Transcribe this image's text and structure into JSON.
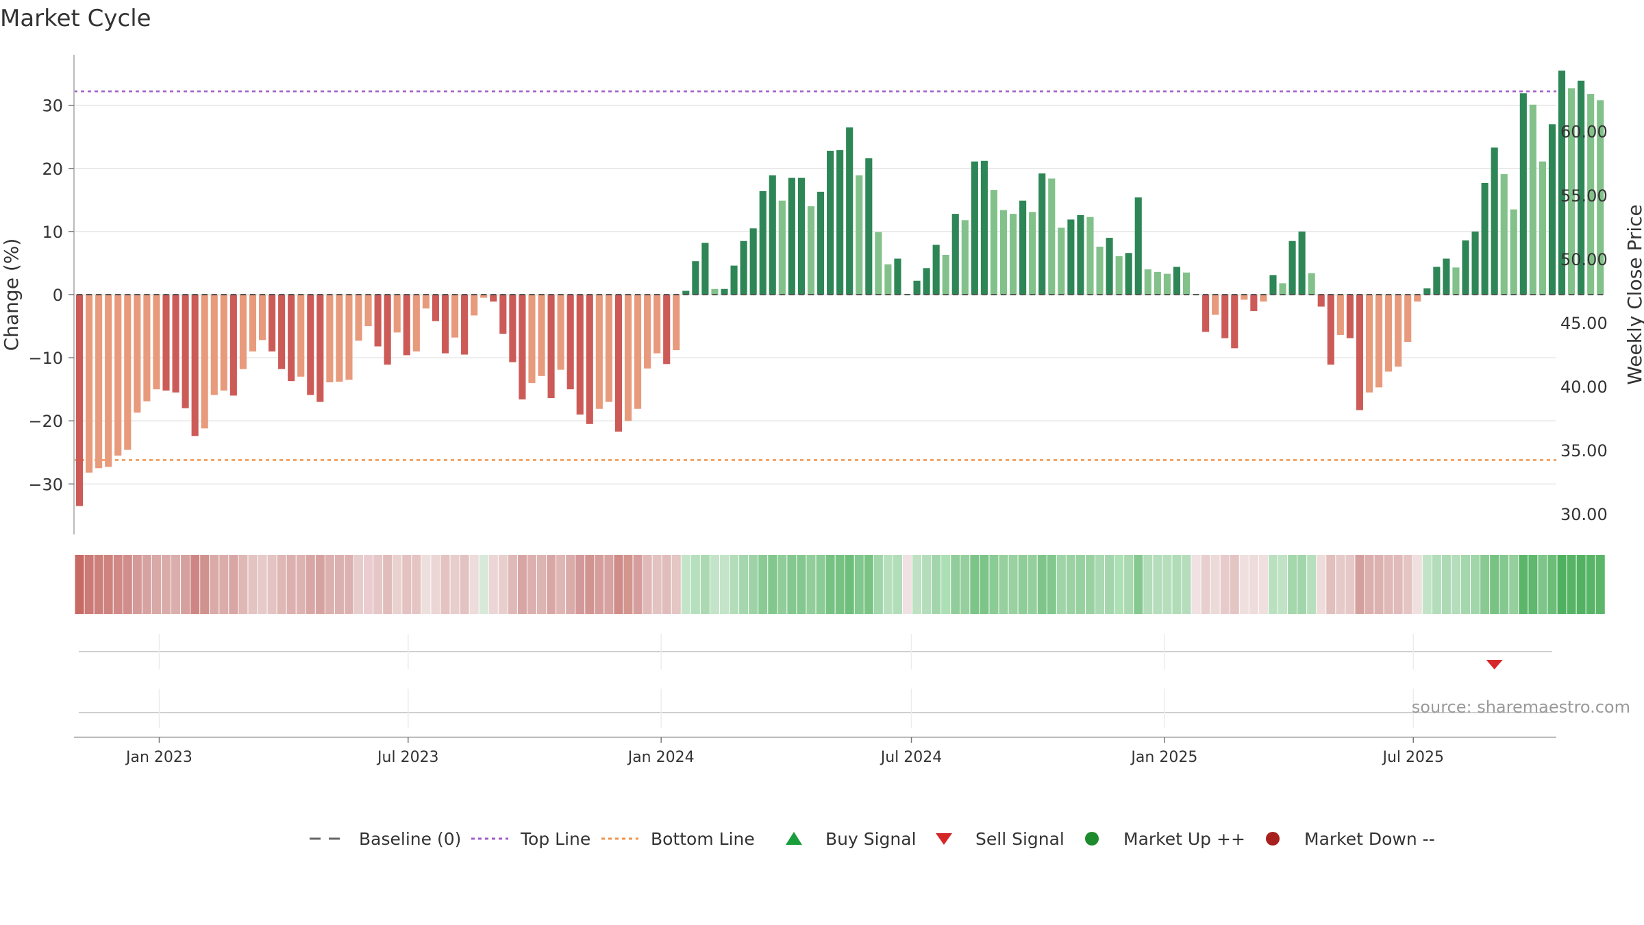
{
  "chart_data": {
    "type": "bar",
    "title": "Market Cycle",
    "ylabel": "Change (%)",
    "y2label": "Weekly Close Price",
    "ylim": [
      -38,
      38
    ],
    "y2lim": [
      28.4,
      66.0
    ],
    "yticks": [
      30,
      20,
      10,
      0,
      -10,
      -20,
      -30
    ],
    "ytick_labels": [
      "30",
      "20",
      "10",
      "0",
      "−10",
      "−20",
      "−30"
    ],
    "y2ticks": [
      60,
      55,
      50,
      45,
      40,
      35,
      30
    ],
    "y2tick_labels": [
      "60.00",
      "55.00",
      "50.00",
      "45.00",
      "40.00",
      "35.00",
      "30.00"
    ],
    "top_line": 32.2,
    "bottom_line": -26.2,
    "x_range": [
      "2022-10-31",
      "2025-10-13"
    ],
    "x_ticks": [
      "2023-01-01",
      "2023-07-01",
      "2024-01-01",
      "2024-07-01",
      "2025-01-01",
      "2025-07-01"
    ],
    "x_tick_labels": [
      "Jan 2023",
      "Jul 2023",
      "Jan 2024",
      "Jul 2024",
      "Jan 2025",
      "Jul 2025"
    ],
    "start_date": "2022-11-04",
    "values": [
      -33.5,
      -28.2,
      -27.5,
      -27.3,
      -25.5,
      -24.6,
      -18.7,
      -16.9,
      -15.0,
      -15.2,
      -15.5,
      -18.0,
      -22.4,
      -21.2,
      -15.9,
      -15.2,
      -16.0,
      -11.8,
      -9.0,
      -7.2,
      -9.0,
      -11.8,
      -13.7,
      -13.0,
      -15.9,
      -17.0,
      -13.9,
      -13.8,
      -13.5,
      -7.3,
      -5.0,
      -8.2,
      -11.1,
      -6.0,
      -9.6,
      -9.0,
      -2.2,
      -4.2,
      -9.3,
      -6.8,
      -9.5,
      -3.3,
      -0.5,
      -1.1,
      -6.2,
      -10.7,
      -16.6,
      -14.0,
      -12.9,
      -16.4,
      -11.9,
      -15.0,
      -19.0,
      -20.5,
      -18.1,
      -17.0,
      -21.7,
      -20.0,
      -18.1,
      -11.7,
      -9.3,
      -11.0,
      -8.8,
      0.6,
      5.3,
      8.2,
      0.9,
      0.9,
      4.6,
      8.5,
      10.5,
      16.4,
      18.9,
      14.9,
      18.5,
      18.5,
      14.0,
      16.3,
      22.8,
      22.9,
      26.5,
      18.9,
      21.6,
      9.9,
      4.8,
      5.7,
      0.1,
      2.2,
      4.2,
      7.9,
      6.3,
      12.8,
      11.8,
      21.1,
      21.2,
      16.6,
      13.4,
      12.8,
      14.9,
      13.1,
      19.2,
      18.4,
      10.6,
      11.9,
      12.6,
      12.3,
      7.6,
      9.0,
      6.1,
      6.6,
      15.4,
      4.0,
      3.6,
      3.3,
      4.4,
      3.5,
      0.1,
      -5.9,
      -3.2,
      -6.9,
      -8.5,
      -0.8,
      -2.6,
      -1.1,
      3.1,
      1.8,
      8.5,
      10.0,
      3.4,
      -1.9,
      -11.1,
      -6.4,
      -6.9,
      -18.3,
      -15.5,
      -14.7,
      -12.2,
      -11.4,
      -7.5,
      -1.1,
      1.0,
      4.4,
      5.7,
      4.3,
      8.6,
      10.0,
      17.7,
      23.3,
      19.1,
      13.5,
      31.9,
      30.1,
      21.1,
      27.0,
      35.5,
      32.7,
      33.9,
      31.8,
      30.8
    ],
    "heat_strip_colors": [
      "#c86a64",
      "#cb7a77",
      "#cc807c",
      "#ce837e",
      "#d08986",
      "#d18d8b",
      "#d49a98",
      "#d6a3a1",
      "#d8a9a7",
      "#d9aba9",
      "#daaeac",
      "#d5a19e",
      "#cd8683",
      "#d0928e",
      "#d9aaa8",
      "#daadab",
      "#d8a6a4",
      "#dfb8b6",
      "#e3c4c2",
      "#e6cac9",
      "#e3c4c2",
      "#dfb8b6",
      "#dbb0ae",
      "#ddb3b1",
      "#d8a7a5",
      "#d6a2a0",
      "#dbb0ae",
      "#dbb1af",
      "#dcb2b0",
      "#e6cdcc",
      "#eaccd0",
      "#e4c7c6",
      "#e0bcba",
      "#e9d1d0",
      "#e3c2c1",
      "#e4c5c4",
      "#eddfde",
      "#ebd6d5",
      "#e3c4c3",
      "#e7cdcc",
      "#e3c3c2",
      "#eddcdb",
      "#d8e9da",
      "#ebd6d5",
      "#e8cfce",
      "#dfb9b7",
      "#d7a5a3",
      "#dbb0ae",
      "#dcb4b2",
      "#d8a7a5",
      "#deb7b5",
      "#d9aba9",
      "#d3989a",
      "#d19490",
      "#d59e9c",
      "#d6a3a1",
      "#cf8c88",
      "#d2968f",
      "#d59e9c",
      "#dfbab8",
      "#e3c3c2",
      "#e0bdbb",
      "#e4c6c4",
      "#c4e4c9",
      "#b6dfbd",
      "#aad9b2",
      "#c3e4c8",
      "#c3e4c8",
      "#b3ddba",
      "#a5d7ae",
      "#9dd3a6",
      "#8acb95",
      "#82c78d",
      "#90cd9a",
      "#84c88f",
      "#84c88f",
      "#92ce9b",
      "#8bcb95",
      "#77c283",
      "#77c283",
      "#6dbe7a",
      "#82c78d",
      "#79c385",
      "#a1d5aa",
      "#b7dfbd",
      "#b2ddb9",
      "#f0e1e2",
      "#bde1c2",
      "#b4ddbb",
      "#a2d5ab",
      "#ace0b4",
      "#91cd9a",
      "#95cf9e",
      "#7cc487",
      "#7cc487",
      "#8bcb95",
      "#97d09f",
      "#99d1a1",
      "#8ecc98",
      "#96cf9e",
      "#7fc58a",
      "#82c78d",
      "#9fd4a8",
      "#9bd2a3",
      "#98d1a0",
      "#99d1a1",
      "#a9d8b1",
      "#a3d6ac",
      "#ade0b4",
      "#a9d8b1",
      "#86c990",
      "#b3dcba",
      "#b5ddbb",
      "#b6debc",
      "#b1dcb8",
      "#b5ddbb",
      "#f0e1e2",
      "#e8cfce",
      "#ecdad9",
      "#e6cbca",
      "#e3c5c4",
      "#efe0df",
      "#eedcdb",
      "#efdfde",
      "#bbe0c0",
      "#c0e2c5",
      "#a5d7ad",
      "#a2d5ab",
      "#b7dfbd",
      "#eedcdb",
      "#e1bfbd",
      "#e6cac9",
      "#e5c8c7",
      "#d4a09e",
      "#dbafad",
      "#dcb2b0",
      "#dfb9b7",
      "#e0bbb9",
      "#e4c5c4",
      "#efdfde",
      "#c2e3c7",
      "#b3ddba",
      "#addab4",
      "#b4ddbb",
      "#a5d7ae",
      "#a1d5aa",
      "#89ca93",
      "#78c384",
      "#84c88f",
      "#95cf9e",
      "#5bb66a",
      "#5fb86e",
      "#7dc588",
      "#6bbd78",
      "#4fb05f",
      "#57b466",
      "#52b262",
      "#58b567",
      "#5bb66a"
    ],
    "sell_signal_date": "2025-08-29",
    "source_text": "source: sharemaestro.com",
    "legend": [
      {
        "label": "Baseline (0)",
        "marker": "dash-line",
        "color": "#666666"
      },
      {
        "label": "Top Line",
        "marker": "dotted-line",
        "color": "#a05cc8"
      },
      {
        "label": "Bottom Line",
        "marker": "dotted-line",
        "color": "#f0924a"
      },
      {
        "label": "Buy Signal",
        "marker": "triangle-up",
        "color": "#1a9e3c"
      },
      {
        "label": "Sell Signal",
        "marker": "triangle-down",
        "color": "#d62728"
      },
      {
        "label": "Market Up ++",
        "marker": "circle",
        "color": "#1e8a2e"
      },
      {
        "label": "Market Down --",
        "marker": "circle",
        "color": "#a8201d"
      }
    ],
    "colors": {
      "pos_strong": "#2e8656",
      "pos_light": "#82c18a",
      "neg_strong": "#cc5b58",
      "neg_light": "#e89a7c",
      "grid": "#e6e6e6",
      "axis": "#bbbbbb",
      "text": "#333333"
    }
  }
}
